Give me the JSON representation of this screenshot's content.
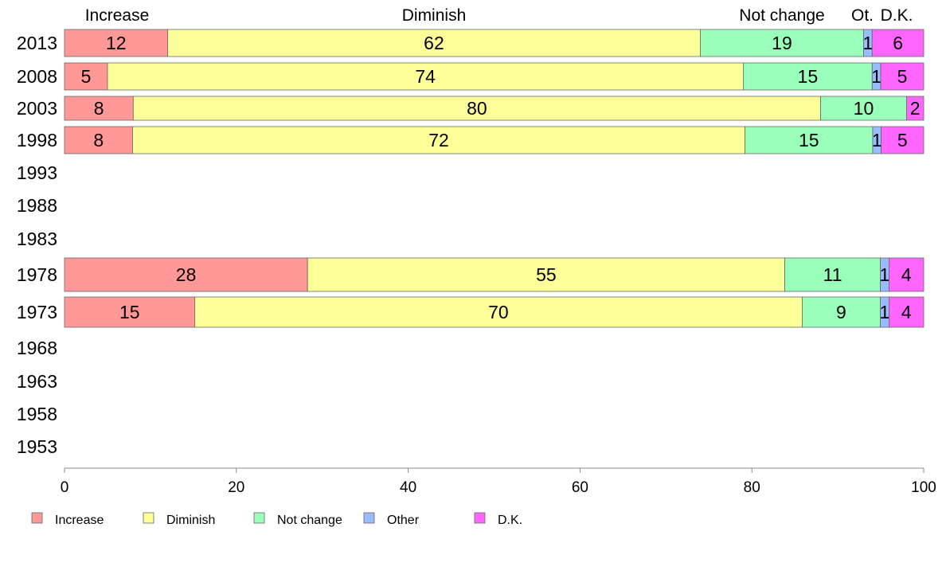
{
  "chart_data": {
    "type": "bar",
    "orientation": "horizontal",
    "stacked": true,
    "categories": [
      "2013",
      "2008",
      "2003",
      "1998",
      "1993",
      "1988",
      "1983",
      "1978",
      "1973",
      "1968",
      "1963",
      "1958",
      "1953"
    ],
    "series": [
      {
        "name": "Increase",
        "color": "#ff9896",
        "values": [
          12,
          5,
          8,
          8,
          null,
          null,
          null,
          28,
          15,
          null,
          null,
          null,
          null
        ]
      },
      {
        "name": "Diminish",
        "color": "#ffff99",
        "values": [
          62,
          74,
          80,
          72,
          null,
          null,
          null,
          55,
          70,
          null,
          null,
          null,
          null
        ]
      },
      {
        "name": "Not change",
        "color": "#99ffbb",
        "values": [
          19,
          15,
          10,
          15,
          null,
          null,
          null,
          11,
          9,
          null,
          null,
          null,
          null
        ]
      },
      {
        "name": "Other",
        "color": "#99bbff",
        "values": [
          1,
          1,
          0,
          1,
          null,
          null,
          null,
          1,
          1,
          null,
          null,
          null,
          null
        ]
      },
      {
        "name": "D.K.",
        "color": "#ff66ff",
        "values": [
          6,
          5,
          2,
          5,
          null,
          null,
          null,
          4,
          4,
          null,
          null,
          null,
          null
        ]
      }
    ],
    "bar_labels": [
      [
        "12",
        "62",
        "19",
        "1",
        "6"
      ],
      [
        "5",
        "74",
        "15",
        "1",
        "5"
      ],
      [
        "8",
        "80",
        "10",
        "",
        "2"
      ],
      [
        "8",
        "72",
        "15",
        "1",
        "5"
      ],
      [],
      [],
      [],
      [
        "28",
        "55",
        "11",
        "1",
        "4"
      ],
      [
        "15",
        "70",
        "9",
        "1",
        "4"
      ],
      [],
      [],
      [],
      []
    ],
    "top_labels": [
      "Increase",
      "Diminish",
      "Not change",
      "Ot.",
      "D.K."
    ],
    "xlim": [
      0,
      100
    ],
    "xticks": [
      0,
      20,
      40,
      60,
      80,
      100
    ],
    "legend_position": "bottom",
    "grid": false
  }
}
